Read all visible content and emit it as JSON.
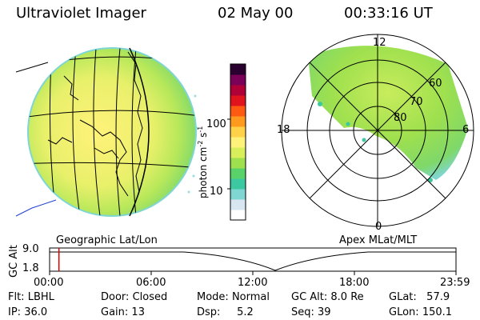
{
  "header": {
    "instrument": "Ultraviolet Imager",
    "date": "02 May 00",
    "time": "00:33:16 UT"
  },
  "colorbar": {
    "unit": "photon cm",
    "unit_exp1": "-2",
    "unit_s": "s",
    "unit_exp2": "-1",
    "ticks": [
      "100",
      "10"
    ],
    "colors": [
      "#ffffff",
      "#d8e6f2",
      "#7fd6d2",
      "#3cc8a0",
      "#5ad26a",
      "#9fe04e",
      "#d8ee5a",
      "#fff27a",
      "#ffd24a",
      "#ff9a1e",
      "#ff5a12",
      "#e0141c",
      "#b00038",
      "#7a0058",
      "#2a0030"
    ]
  },
  "left_panel": {
    "caption": "Geographic Lat/Lon"
  },
  "right_panel": {
    "caption": "Apex MLat/MLT",
    "mlt_labels": {
      "top": "12",
      "left": "18",
      "right": "6",
      "bottom": "0"
    },
    "lat_labels": [
      "60",
      "70",
      "80"
    ]
  },
  "timeline": {
    "ylabel": "GC Alt",
    "ytick_top": "9.0",
    "ytick_bottom": "1.8",
    "xticks": [
      "00:00",
      "06:00",
      "12:00",
      "18:00",
      "23:59"
    ],
    "current_time_fraction": 0.023
  },
  "info": {
    "flt_label": "Flt:",
    "flt_value": "LBHL",
    "ip_label": "IP:",
    "ip_value": "36.0",
    "door_label": "Door:",
    "door_value": "Closed",
    "gain_label": "Gain:",
    "gain_value": "13",
    "mode_label": "Mode:",
    "mode_value": "Normal",
    "dsp_label": "Dsp:",
    "dsp_value": "5.2",
    "gcalt_label": "GC Alt:",
    "gcalt_value": "8.0 Re",
    "seq_label": "Seq:",
    "seq_value": "39",
    "glat_label": "GLat:",
    "glat_value": "57.9",
    "glon_label": "GLon:",
    "glon_value": "150.1"
  }
}
